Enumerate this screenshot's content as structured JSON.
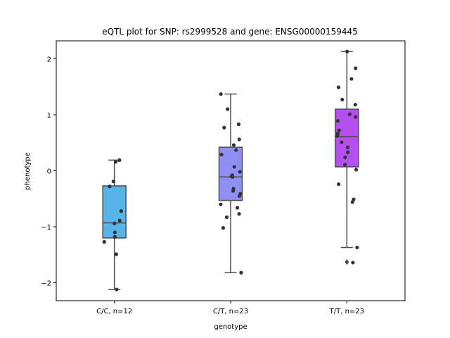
{
  "chart_data": {
    "type": "box",
    "title": "eQTL plot for SNP: rs2999528 and gene: ENSG00000159445",
    "xlabel": "genotype",
    "ylabel": "phenotype",
    "ylim": [
      -2.32,
      2.32
    ],
    "yticks": [
      -2,
      -1,
      0,
      1,
      2
    ],
    "ytick_labels": [
      "−2",
      "−1",
      "0",
      "1",
      "2"
    ],
    "grid": false,
    "categories": [
      "C/C, n=12",
      "C/T, n=23",
      "T/T, n=23"
    ],
    "boxes": [
      {
        "category": "C/C, n=12",
        "color": "#56b4e9",
        "whisker_low": -2.12,
        "q1": -1.2,
        "median": -0.93,
        "q3": -0.27,
        "whisker_high": 0.19,
        "outliers": [],
        "points": [
          0.19,
          0.16,
          -0.19,
          -0.28,
          -0.72,
          -0.89,
          -0.94,
          -1.1,
          -1.18,
          -1.27,
          -1.49,
          -2.12
        ]
      },
      {
        "category": "C/T, n=23",
        "color": "#8f8ff5",
        "whisker_low": -1.82,
        "q1": -0.53,
        "median": -0.11,
        "q3": 0.42,
        "whisker_high": 1.37,
        "outliers": [],
        "points": [
          1.37,
          1.1,
          0.83,
          0.77,
          0.56,
          0.46,
          0.37,
          0.29,
          0.07,
          -0.02,
          -0.08,
          -0.1,
          -0.32,
          -0.36,
          -0.41,
          -0.45,
          -0.6,
          -0.66,
          -0.77,
          -0.83,
          -1.02,
          -1.82,
          -0.11
        ]
      },
      {
        "category": "T/T, n=23",
        "color": "#b44ff0",
        "whisker_low": -1.37,
        "q1": 0.07,
        "median": 0.61,
        "q3": 1.1,
        "whisker_high": 2.13,
        "outliers": [
          -1.63
        ],
        "points": [
          2.13,
          1.83,
          1.64,
          1.49,
          1.27,
          1.18,
          1.01,
          0.96,
          0.89,
          0.72,
          0.66,
          0.62,
          0.51,
          0.42,
          0.33,
          0.24,
          0.11,
          0.02,
          -0.24,
          -0.51,
          -0.56,
          -1.37,
          -1.64
        ]
      }
    ]
  }
}
